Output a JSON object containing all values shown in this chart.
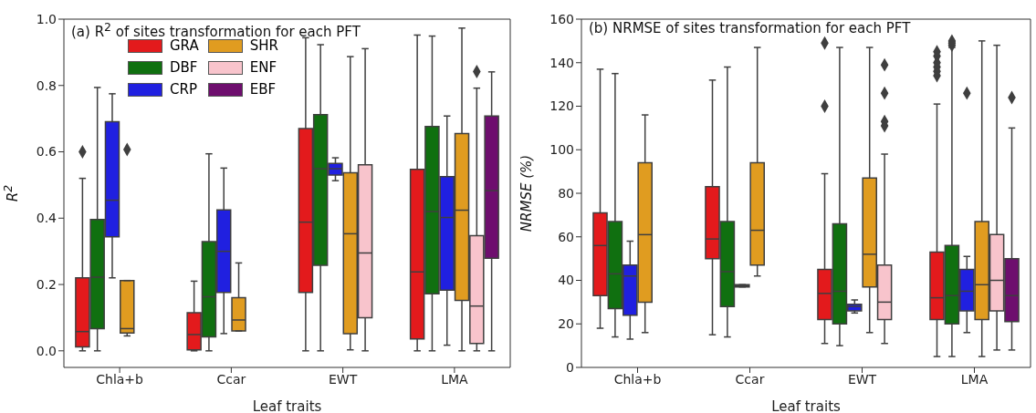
{
  "chart_data": [
    {
      "type": "box",
      "title": "(a) R$^{2}$ of sites transformation for each PFT",
      "xlabel": "Leaf traits",
      "ylabel": "R$^{2}$",
      "categories": [
        "Chla+b",
        "Ccar",
        "EWT",
        "LMA"
      ],
      "ylim": [
        -0.05,
        1.0
      ],
      "yticks": [
        {
          "value": 0,
          "label": "0.0"
        },
        {
          "value": 0.2,
          "label": "0.2"
        },
        {
          "value": 0.4,
          "label": "0.4"
        },
        {
          "value": 0.6,
          "label": "0.6"
        },
        {
          "value": 0.8,
          "label": "0.8"
        },
        {
          "value": 1.0,
          "label": "1.0"
        }
      ],
      "legend": "top",
      "grid": false,
      "series": [
        {
          "name": "GRA",
          "color": "#e31a1c",
          "boxes": [
            {
              "low": 0,
              "q1": 0.012,
              "median": 0.058,
              "q3": 0.22,
              "high": 0.52,
              "outliers": [
                0.6
              ]
            },
            {
              "low": 0,
              "q1": 0.003,
              "median": 0.049,
              "q3": 0.115,
              "high": 0.21
            },
            {
              "low": 0,
              "q1": 0.176,
              "median": 0.388,
              "q3": 0.67,
              "high": 0.944
            },
            {
              "low": 0,
              "q1": 0.036,
              "median": 0.238,
              "q3": 0.547,
              "high": 0.952
            }
          ]
        },
        {
          "name": "DBF",
          "color": "#107010",
          "boxes": [
            {
              "low": 0,
              "q1": 0.067,
              "median": 0.222,
              "q3": 0.396,
              "high": 0.794
            },
            {
              "low": 0,
              "q1": 0.042,
              "median": 0.163,
              "q3": 0.329,
              "high": 0.594
            },
            {
              "low": 0,
              "q1": 0.258,
              "median": 0.549,
              "q3": 0.712,
              "high": 0.923
            },
            {
              "low": 0,
              "q1": 0.172,
              "median": 0.42,
              "q3": 0.676,
              "high": 0.949
            }
          ]
        },
        {
          "name": "CRP",
          "color": "#2020e0",
          "boxes": [
            {
              "low": 0.22,
              "q1": 0.344,
              "median": 0.454,
              "q3": 0.691,
              "high": 0.775
            },
            {
              "low": 0.052,
              "q1": 0.176,
              "median": 0.3,
              "q3": 0.425,
              "high": 0.551
            },
            {
              "low": 0.513,
              "q1": 0.53,
              "median": 0.549,
              "q3": 0.565,
              "high": 0.582
            },
            {
              "low": 0.017,
              "q1": 0.183,
              "median": 0.402,
              "q3": 0.525,
              "high": 0.708
            }
          ]
        },
        {
          "name": "SHR",
          "color": "#e09c20",
          "boxes": [
            {
              "low": 0.045,
              "q1": 0.054,
              "median": 0.067,
              "q3": 0.212,
              "high": 0.212,
              "outliers": [
                0.607
              ]
            },
            {
              "low": 0.06,
              "q1": 0.06,
              "median": 0.093,
              "q3": 0.16,
              "high": 0.265
            },
            {
              "low": 0.003,
              "q1": 0.052,
              "median": 0.353,
              "q3": 0.537,
              "high": 0.887
            },
            {
              "low": 0,
              "q1": 0.152,
              "median": 0.424,
              "q3": 0.655,
              "high": 0.973
            }
          ]
        },
        {
          "name": "ENF",
          "color": "#f8c4cc",
          "boxes": [
            null,
            null,
            {
              "low": 0,
              "q1": 0.1,
              "median": 0.295,
              "q3": 0.561,
              "high": 0.911
            },
            {
              "low": 0,
              "q1": 0.022,
              "median": 0.135,
              "q3": 0.347,
              "high": 0.792,
              "outliers": [
                0.842
              ]
            }
          ]
        },
        {
          "name": "EBF",
          "color": "#6e0e6e",
          "boxes": [
            null,
            null,
            null,
            {
              "low": 0,
              "q1": 0.279,
              "median": 0.483,
              "q3": 0.708,
              "high": 0.841
            }
          ]
        }
      ]
    },
    {
      "type": "box",
      "title": "(b) NRMSE of sites transformation for each PFT",
      "xlabel": "Leaf traits",
      "ylabel": "NRMSE (%)",
      "categories": [
        "Chla+b",
        "Ccar",
        "EWT",
        "LMA"
      ],
      "ylim": [
        0,
        160
      ],
      "yticks": [
        0,
        20,
        40,
        60,
        80,
        100,
        120,
        140,
        160
      ],
      "grid": false,
      "series": [
        {
          "color": "#e31a1c",
          "boxes": [
            {
              "low": 18,
              "q1": 33,
              "median": 56,
              "q3": 71,
              "high": 137
            },
            {
              "low": 15,
              "q1": 50,
              "median": 59,
              "q3": 83,
              "high": 132
            },
            {
              "low": 11,
              "q1": 22,
              "median": 34,
              "q3": 45,
              "high": 89,
              "outliers": [
                120,
                149
              ]
            },
            {
              "low": 5,
              "q1": 22,
              "median": 32,
              "q3": 53,
              "high": 121,
              "outliers": [
                134,
                136,
                138,
                140,
                143,
                145
              ]
            }
          ]
        },
        {
          "color": "#107010",
          "boxes": [
            {
              "low": 14,
              "q1": 27,
              "median": 43,
              "q3": 67,
              "high": 135
            },
            {
              "low": 14,
              "q1": 28,
              "median": 44,
              "q3": 67,
              "high": 138
            },
            {
              "low": 10,
              "q1": 20,
              "median": 35,
              "q3": 66,
              "high": 147
            },
            {
              "low": 5,
              "q1": 20,
              "median": 33,
              "q3": 56,
              "high": 147,
              "outliers": [
                148,
                149,
                150
              ]
            }
          ]
        },
        {
          "color": "#2020e0",
          "boxes": [
            {
              "low": 13,
              "q1": 24,
              "median": 42,
              "q3": 47,
              "high": 58
            },
            {
              "low": 37,
              "q1": 37,
              "median": 37.5,
              "q3": 38,
              "high": 38
            },
            {
              "low": 25,
              "q1": 26,
              "median": 28,
              "q3": 29,
              "high": 31
            },
            {
              "low": 16,
              "q1": 26,
              "median": 35,
              "q3": 45,
              "high": 51,
              "outliers": [
                126
              ]
            }
          ]
        },
        {
          "color": "#e09c20",
          "boxes": [
            {
              "low": 16,
              "q1": 30,
              "median": 61,
              "q3": 94,
              "high": 116
            },
            {
              "low": 42,
              "q1": 47,
              "median": 63,
              "q3": 94,
              "high": 147
            },
            {
              "low": 16,
              "q1": 37,
              "median": 52,
              "q3": 87,
              "high": 147
            },
            {
              "low": 5,
              "q1": 22,
              "median": 38,
              "q3": 67,
              "high": 150
            }
          ]
        },
        {
          "color": "#f8c4cc",
          "boxes": [
            null,
            null,
            {
              "low": 11,
              "q1": 22,
              "median": 30,
              "q3": 47,
              "high": 98,
              "outliers": [
                111,
                113,
                126,
                139
              ]
            },
            {
              "low": 8,
              "q1": 26,
              "median": 40,
              "q3": 61,
              "high": 148
            }
          ]
        },
        {
          "color": "#6e0e6e",
          "boxes": [
            null,
            null,
            null,
            {
              "low": 8,
              "q1": 21,
              "median": 33,
              "q3": 50,
              "high": 110,
              "outliers": [
                124
              ]
            }
          ]
        }
      ]
    }
  ]
}
